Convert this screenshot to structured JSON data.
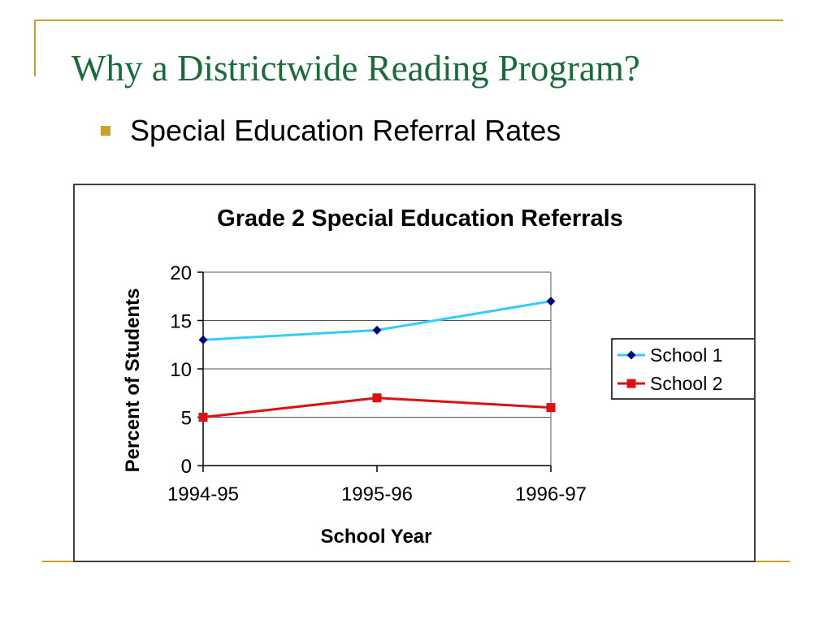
{
  "slide": {
    "title": "Why a Districtwide Reading Program?",
    "bullet": "Special Education Referral Rates"
  },
  "colors": {
    "accent": "#c9a227",
    "title": "#1a6b3a",
    "school1_line": "#33ccff",
    "school1_marker": "#000080",
    "school2": "#dd1111"
  },
  "chart_data": {
    "type": "line",
    "title": "Grade 2 Special Education Referrals",
    "xlabel": "School Year",
    "ylabel": "Percent of Students",
    "categories": [
      "1994-95",
      "1995-96",
      "1996-97"
    ],
    "ylim": [
      0,
      20
    ],
    "yticks": [
      0,
      5,
      10,
      15,
      20
    ],
    "grid": "horizontal",
    "legend_position": "right",
    "series": [
      {
        "name": "School 1",
        "values": [
          13,
          14,
          17
        ],
        "marker": "diamond"
      },
      {
        "name": "School 2",
        "values": [
          5,
          7,
          6
        ],
        "marker": "square"
      }
    ]
  }
}
